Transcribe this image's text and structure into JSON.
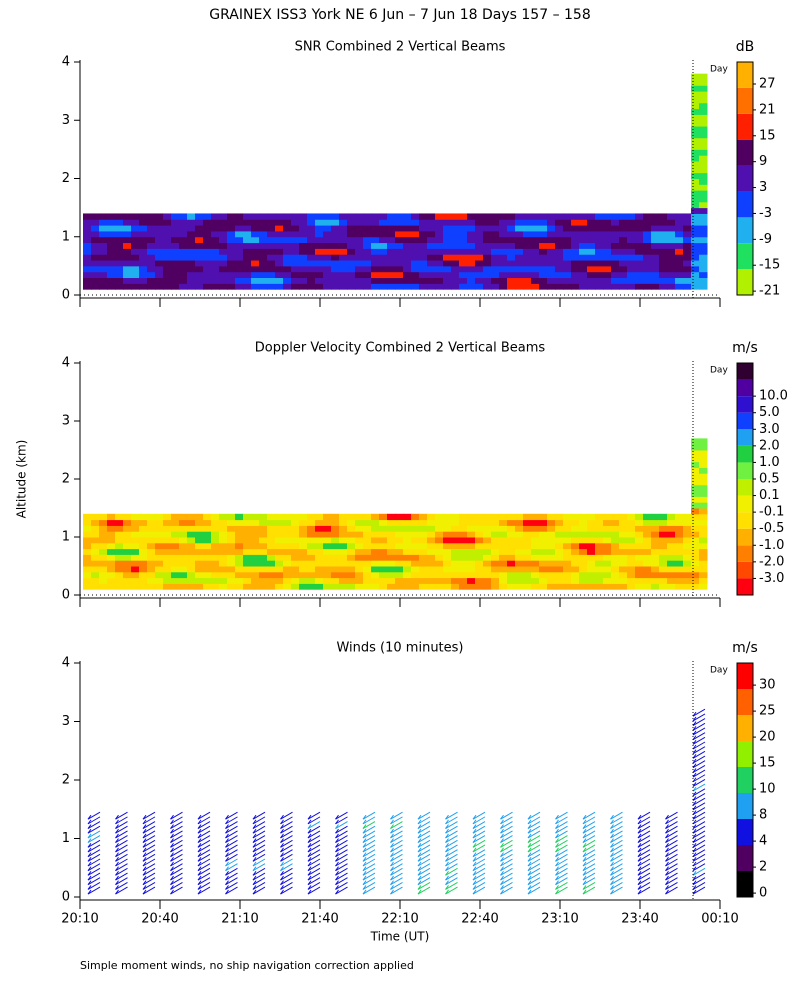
{
  "title": "GRAINEX ISS3 York NE   6 Jun –  7 Jun 18 Days 157 – 158",
  "footnote": "Simple moment winds, no ship navigation correction applied",
  "chart_data": [
    {
      "type": "contour",
      "title": "SNR Combined 2 Vertical Beams",
      "annotation": "Day",
      "ylim": [
        0,
        4
      ],
      "yticks": [
        0,
        1,
        2,
        3,
        4
      ],
      "xlim": [
        1210,
        1450
      ],
      "xticks": [
        1210,
        1240,
        1270,
        1300,
        1330,
        1360,
        1390,
        1420,
        1450
      ],
      "colorbar": {
        "unit": "dB",
        "colors": [
          "#b0f000",
          "#20e060",
          "#20b0f0",
          "#1040ff",
          "#5010b0",
          "#500060",
          "#ff2000",
          "#ff7000",
          "#ffb000"
        ],
        "levels": [
          -21,
          -15,
          -9,
          -3,
          3,
          9,
          15,
          21,
          27
        ]
      }
    },
    {
      "type": "contour",
      "title": "Doppler Velocity Combined 2 Vertical Beams",
      "ylabel": "Altitude (km)",
      "annotation": "Day",
      "ylim": [
        0,
        4
      ],
      "yticks": [
        0,
        1,
        2,
        3,
        4
      ],
      "xlim": [
        1210,
        1450
      ],
      "xticks": [
        1210,
        1240,
        1270,
        1300,
        1330,
        1360,
        1390,
        1420,
        1450
      ],
      "colorbar": {
        "unit": "m/s",
        "colors": [
          "#ff0010",
          "#ff4800",
          "#ff8000",
          "#ffb000",
          "#ffe000",
          "#f0f000",
          "#c0f000",
          "#70f040",
          "#20d040",
          "#20a0f0",
          "#1040ff",
          "#3010d0",
          "#5000a0",
          "#300030"
        ],
        "levels": [
          {
            "value": -3,
            "label": "-3.0"
          },
          {
            "value": -2,
            "label": "-2.0"
          },
          {
            "value": -1,
            "label": "-1.0"
          },
          -0.5,
          -0.1,
          0.1,
          0.5,
          {
            "value": 1,
            "label": "1.0"
          },
          {
            "value": 2,
            "label": "2.0"
          },
          {
            "value": 3,
            "label": "3.0"
          },
          {
            "value": 5,
            "label": "5.0"
          },
          {
            "value": 10,
            "label": "10.0"
          }
        ]
      }
    },
    {
      "type": "barbs",
      "title": "Winds (10 minutes)",
      "xlabel": "Time (UT)",
      "annotation": "Day",
      "ylim": [
        0,
        4
      ],
      "yticks": [
        0,
        1,
        2,
        3,
        4
      ],
      "xlim": [
        1210,
        1450
      ],
      "xticks": [
        {
          "value": 1210,
          "label": "20:10"
        },
        {
          "value": 1240,
          "label": "20:40"
        },
        {
          "value": 1270,
          "label": "21:10"
        },
        {
          "value": 1300,
          "label": "21:40"
        },
        {
          "value": 1330,
          "label": "22:10"
        },
        {
          "value": 1360,
          "label": "22:40"
        },
        {
          "value": 1390,
          "label": "23:10"
        },
        {
          "value": 1420,
          "label": "23:40"
        },
        {
          "value": 1450,
          "label": "00:10"
        }
      ],
      "colorbar": {
        "unit": "m/s",
        "colors": [
          "#000000",
          "#500060",
          "#1010e0",
          "#20a0f0",
          "#20d060",
          "#90f000",
          "#ffb000",
          "#ff6000",
          "#ff0000"
        ],
        "levels": [
          0,
          2,
          4,
          8,
          10,
          15,
          20,
          25,
          30
        ]
      }
    }
  ]
}
